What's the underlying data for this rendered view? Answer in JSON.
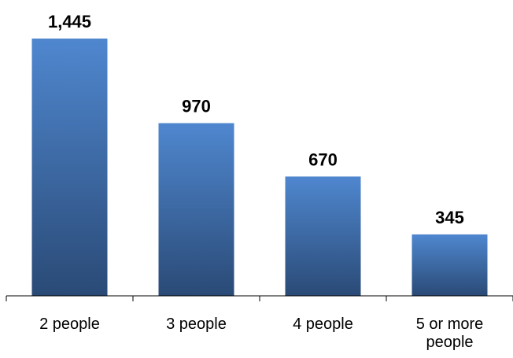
{
  "chart_data": {
    "type": "bar",
    "categories": [
      "2 people",
      "3 people",
      "4 people",
      "5 or more people"
    ],
    "category_lines": [
      [
        "2 people"
      ],
      [
        "3 people"
      ],
      [
        "4 people"
      ],
      [
        "5 or more",
        "people"
      ]
    ],
    "values": [
      1445,
      970,
      670,
      345
    ],
    "value_labels": [
      "1,445",
      "970",
      "670",
      "345"
    ],
    "title": "",
    "xlabel": "",
    "ylabel": "",
    "ylim": [
      0,
      1445
    ],
    "grid": false,
    "legend": "none",
    "colors": {
      "bar_top": "#4f87cf",
      "bar_bottom": "#2a4a76",
      "axis": "#000000"
    }
  }
}
